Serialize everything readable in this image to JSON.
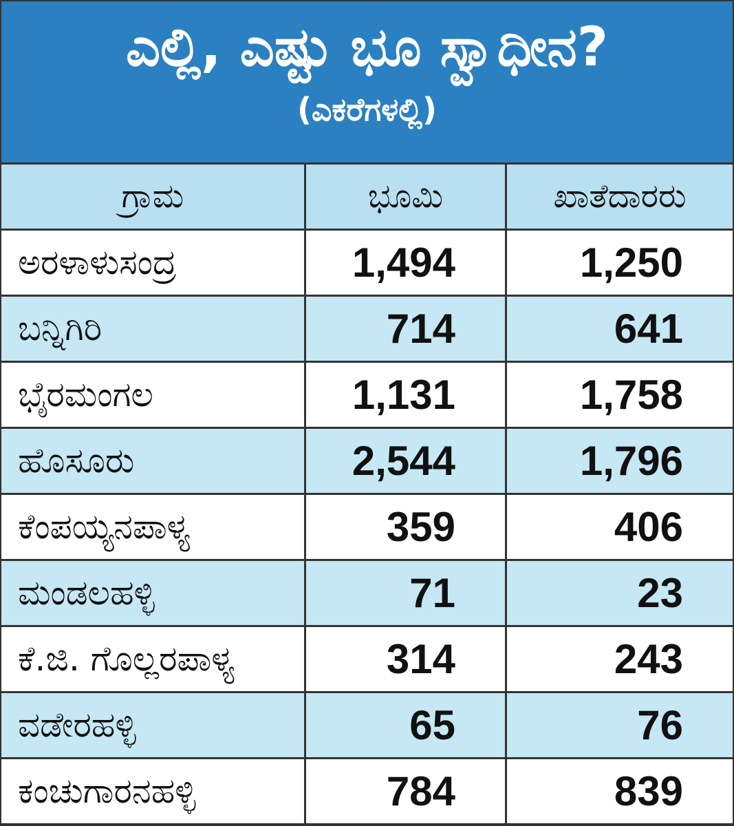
{
  "chart_data": {
    "type": "table",
    "title": "ಎಲ್ಲಿ, ಎಷ್ಟು ಭೂ ಸ್ವಾಧೀನ?",
    "subtitle": "(ಎಕರೆಗಳಲ್ಲಿ)",
    "columns": [
      "ಗ್ರಾಮ",
      "ಭೂಮಿ",
      "ಖಾತೆದಾರರು"
    ],
    "rows": [
      [
        "ಅರಳಾಳುಸಂದ್ರ",
        "1,494",
        "1,250"
      ],
      [
        "ಬನ್ನಿಗಿರಿ",
        "714",
        "641"
      ],
      [
        "ಭೈರಮಂಗಲ",
        "1,131",
        "1,758"
      ],
      [
        "ಹೊಸೂರು",
        "2,544",
        "1,796"
      ],
      [
        "ಕೆಂಪಯ್ಯನಪಾಳ್ಯ",
        "359",
        "406"
      ],
      [
        "ಮಂಡಲಹಳ್ಳಿ",
        "71",
        "23"
      ],
      [
        "ಕೆ.ಜಿ. ಗೊಲ್ಲರಪಾಳ್ಯ",
        "314",
        "243"
      ],
      [
        "ವಡೇರಹಳ್ಳಿ",
        "65",
        "76"
      ],
      [
        "ಕಂಚುಗಾರನಹಳ್ಳಿ",
        "784",
        "839"
      ]
    ],
    "colors": {
      "title_bg": "#2b80c1",
      "header_bg": "#b8e0f1",
      "stripe_bg": "#c6e7f4",
      "border": "#333333"
    }
  }
}
